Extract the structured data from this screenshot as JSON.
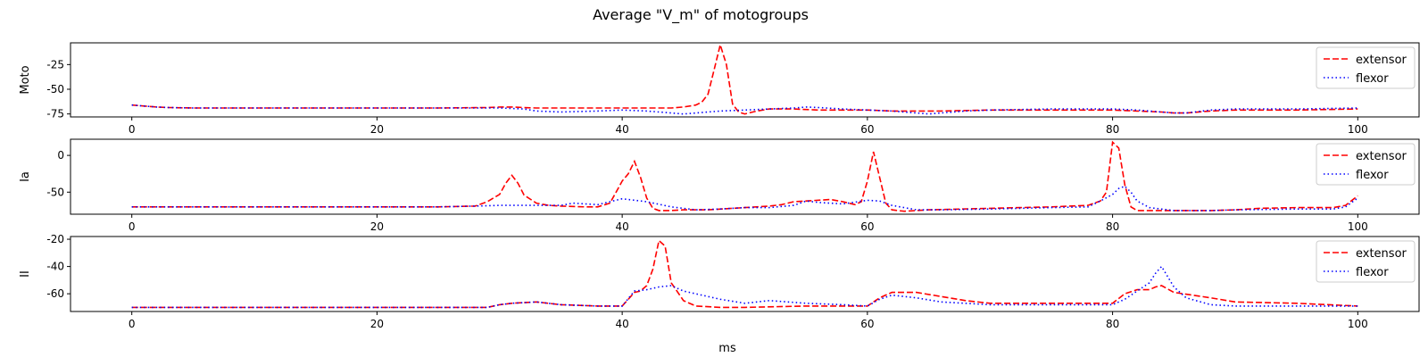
{
  "figure": {
    "title": "Average \"V_m\" of motogroups",
    "xlabel": "ms"
  },
  "legend": {
    "placement": "upper right",
    "entries": [
      {
        "name": "extensor",
        "color": "#ff0000",
        "style": "dashed"
      },
      {
        "name": "flexor",
        "color": "#0000ff",
        "style": "dotted"
      }
    ]
  },
  "chart_data": [
    {
      "type": "line",
      "ylabel": "Moto",
      "xlim": [
        -5,
        105
      ],
      "ylim": [
        -78,
        -3
      ],
      "xticks": [
        0,
        20,
        40,
        60,
        80,
        100
      ],
      "yticks": [
        -75,
        -50,
        -25
      ],
      "grid": false,
      "series": [
        {
          "name": "extensor",
          "x": [
            0,
            1,
            2,
            3,
            5,
            10,
            15,
            20,
            25,
            29,
            30,
            31,
            32,
            33,
            35,
            38,
            40,
            42,
            44,
            45,
            46,
            46.5,
            47,
            47.5,
            48,
            48.5,
            49,
            49.5,
            50,
            51,
            52,
            54,
            56,
            58,
            60,
            62,
            64,
            66,
            70,
            75,
            80,
            82,
            84,
            85,
            86,
            88,
            90,
            95,
            100
          ],
          "y": [
            -66,
            -67,
            -68,
            -68.5,
            -69,
            -69,
            -69,
            -69,
            -69,
            -68.5,
            -68,
            -68,
            -68.5,
            -69,
            -69,
            -69,
            -69,
            -69,
            -69,
            -68,
            -66,
            -63,
            -55,
            -30,
            -5,
            -25,
            -65,
            -73,
            -75,
            -72,
            -70,
            -70,
            -71,
            -71,
            -71,
            -72,
            -72,
            -72,
            -71,
            -71,
            -71,
            -72,
            -73,
            -74,
            -74,
            -72,
            -71,
            -71,
            -70
          ]
        },
        {
          "name": "flexor",
          "x": [
            0,
            1,
            2,
            3,
            5,
            10,
            15,
            20,
            25,
            30,
            32,
            33,
            35,
            38,
            40,
            42,
            44,
            45,
            46,
            48,
            50,
            52,
            54,
            55,
            56,
            58,
            60,
            62,
            64,
            65,
            66,
            68,
            70,
            75,
            80,
            82,
            84,
            85,
            86,
            88,
            90,
            95,
            100
          ],
          "y": [
            -66,
            -67,
            -68,
            -68.5,
            -69,
            -69,
            -69,
            -69,
            -69,
            -69,
            -70,
            -72,
            -73,
            -72,
            -71,
            -72,
            -74,
            -75,
            -74,
            -72,
            -71,
            -70,
            -69,
            -68,
            -68.5,
            -70,
            -71,
            -72,
            -74,
            -75,
            -74,
            -72,
            -71,
            -70,
            -70,
            -71,
            -73,
            -74,
            -74,
            -71,
            -70,
            -70,
            -69
          ]
        }
      ]
    },
    {
      "type": "line",
      "ylabel": "Ia",
      "xlim": [
        -5,
        105
      ],
      "ylim": [
        -80,
        22
      ],
      "xticks": [
        0,
        20,
        40,
        60,
        80,
        100
      ],
      "yticks": [
        -50,
        0
      ],
      "grid": false,
      "series": [
        {
          "name": "extensor",
          "x": [
            0,
            5,
            10,
            15,
            20,
            25,
            28,
            29,
            30,
            30.5,
            31,
            31.5,
            32,
            33,
            34,
            35,
            37,
            38,
            39,
            39.5,
            40,
            40.5,
            41,
            41.5,
            42,
            42.5,
            43,
            44,
            45,
            47,
            50,
            52,
            53,
            54,
            55,
            57,
            58,
            59,
            59.5,
            60,
            60.5,
            61,
            61.5,
            62,
            63,
            65,
            70,
            75,
            78,
            79,
            79.5,
            80,
            80.5,
            81,
            81.5,
            82,
            83,
            85,
            88,
            90,
            92,
            95,
            98,
            99,
            100
          ],
          "y": [
            -70,
            -70,
            -70,
            -70,
            -70,
            -70,
            -69,
            -63,
            -53,
            -38,
            -27,
            -38,
            -54,
            -65,
            -68,
            -69,
            -70,
            -70,
            -65,
            -50,
            -35,
            -25,
            -8,
            -30,
            -58,
            -72,
            -75,
            -75,
            -74,
            -74,
            -71,
            -69,
            -67,
            -63,
            -62,
            -60,
            -63,
            -67,
            -63,
            -35,
            5,
            -30,
            -65,
            -74,
            -76,
            -74,
            -72,
            -70,
            -68,
            -62,
            -50,
            18,
            10,
            -40,
            -70,
            -75,
            -75,
            -75,
            -75,
            -74,
            -72,
            -71,
            -71,
            -68,
            -55
          ]
        },
        {
          "name": "flexor",
          "x": [
            0,
            5,
            10,
            15,
            20,
            25,
            28,
            30,
            33,
            35,
            36,
            37,
            38,
            40,
            42,
            44,
            46,
            48,
            50,
            52,
            54,
            55,
            56,
            58,
            60,
            61,
            62,
            64,
            66,
            70,
            75,
            78,
            79,
            80,
            80.5,
            81,
            81.5,
            82,
            83,
            85,
            88,
            90,
            95,
            98,
            99,
            100
          ],
          "y": [
            -70,
            -70,
            -70,
            -70,
            -70,
            -70,
            -69,
            -68,
            -68,
            -68,
            -65,
            -66,
            -67,
            -59,
            -63,
            -70,
            -74,
            -73,
            -71,
            -71,
            -68,
            -62,
            -64,
            -66,
            -61,
            -62,
            -68,
            -74,
            -74,
            -73,
            -71,
            -70,
            -62,
            -53,
            -45,
            -42,
            -50,
            -62,
            -71,
            -75,
            -75,
            -74,
            -73,
            -73,
            -70,
            -58
          ]
        }
      ]
    },
    {
      "type": "line",
      "ylabel": "II",
      "xlim": [
        -5,
        105
      ],
      "ylim": [
        -73,
        -18
      ],
      "xticks": [
        0,
        20,
        40,
        60,
        80,
        100
      ],
      "yticks": [
        -60,
        -40,
        -20
      ],
      "grid": false,
      "series": [
        {
          "name": "extensor",
          "x": [
            0,
            5,
            10,
            15,
            20,
            25,
            29,
            30,
            31,
            33,
            35,
            38,
            40,
            41,
            41.5,
            42,
            42.5,
            43,
            43.5,
            44,
            45,
            46,
            48,
            50,
            55,
            58,
            60,
            61,
            62,
            64,
            66,
            68,
            70,
            75,
            80,
            81,
            82,
            83,
            83.5,
            84,
            85,
            88,
            90,
            95,
            100
          ],
          "y": [
            -70,
            -70,
            -70,
            -70,
            -70,
            -70,
            -70,
            -68,
            -67,
            -66,
            -68,
            -69,
            -69,
            -59,
            -58,
            -54,
            -42,
            -21,
            -25,
            -52,
            -65,
            -69,
            -70,
            -70,
            -69,
            -69,
            -69,
            -63,
            -59,
            -59,
            -62,
            -65,
            -67,
            -67,
            -67,
            -60,
            -57,
            -57,
            -55,
            -54,
            -59,
            -63,
            -66,
            -67,
            -69
          ]
        },
        {
          "name": "flexor",
          "x": [
            0,
            5,
            10,
            15,
            20,
            25,
            29,
            30,
            31,
            33,
            35,
            38,
            40,
            41,
            42,
            43,
            44,
            45,
            48,
            50,
            52,
            55,
            58,
            60,
            61,
            62,
            64,
            66,
            70,
            75,
            80,
            81,
            82,
            83,
            83.5,
            84,
            85,
            86,
            88,
            90,
            95,
            100
          ],
          "y": [
            -70,
            -70,
            -70,
            -70,
            -70,
            -70,
            -70,
            -68,
            -67,
            -66,
            -68,
            -69,
            -69,
            -58,
            -57,
            -55,
            -54,
            -58,
            -64,
            -67,
            -65,
            -67,
            -68,
            -69,
            -64,
            -61,
            -63,
            -66,
            -68,
            -68,
            -68,
            -64,
            -58,
            -52,
            -45,
            -40,
            -55,
            -63,
            -68,
            -69,
            -69,
            -69
          ]
        }
      ]
    }
  ]
}
